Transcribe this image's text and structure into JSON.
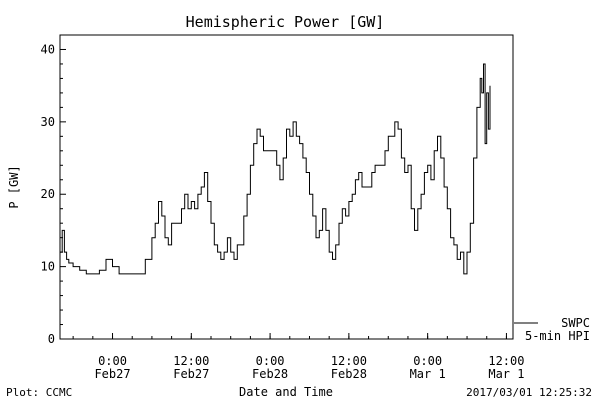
{
  "chart_data": {
    "type": "line",
    "title": "Hemispheric Power [GW]",
    "ylabel": "P [GW]",
    "xlabel": "Date and Time",
    "ylim": [
      0,
      42
    ],
    "xlim": [
      "2017-02-26T16:00",
      "2017-03-01T13:00"
    ],
    "y_ticks": [
      0,
      10,
      20,
      30,
      40
    ],
    "x_ticks": [
      {
        "t": "2017-02-27T00:00",
        "time": "0:00",
        "date": "Feb27"
      },
      {
        "t": "2017-02-27T12:00",
        "time": "12:00",
        "date": "Feb27"
      },
      {
        "t": "2017-02-28T00:00",
        "time": "0:00",
        "date": "Feb28"
      },
      {
        "t": "2017-02-28T12:00",
        "time": "12:00",
        "date": "Feb28"
      },
      {
        "t": "2017-03-01T00:00",
        "time": "0:00",
        "date": "Mar 1"
      },
      {
        "t": "2017-03-01T12:00",
        "time": "12:00",
        "date": "Mar 1"
      }
    ],
    "legend": {
      "lines": [
        "SWPC",
        "5-min HPI"
      ],
      "placement": "bottom-right outside"
    },
    "grid": false,
    "series": [
      {
        "name": "SWPC 5-min HPI",
        "points": [
          [
            "2017-02-26T16:00",
            12
          ],
          [
            "2017-02-26T16:20",
            15
          ],
          [
            "2017-02-26T16:40",
            12
          ],
          [
            "2017-02-26T17:00",
            11
          ],
          [
            "2017-02-26T17:20",
            10.5
          ],
          [
            "2017-02-26T18:00",
            10
          ],
          [
            "2017-02-26T19:00",
            9.5
          ],
          [
            "2017-02-26T20:00",
            9
          ],
          [
            "2017-02-26T22:00",
            9.5
          ],
          [
            "2017-02-26T23:00",
            11
          ],
          [
            "2017-02-27T00:00",
            10
          ],
          [
            "2017-02-27T01:00",
            9
          ],
          [
            "2017-02-27T04:00",
            9
          ],
          [
            "2017-02-27T05:00",
            11
          ],
          [
            "2017-02-27T06:00",
            14
          ],
          [
            "2017-02-27T06:30",
            16
          ],
          [
            "2017-02-27T07:00",
            19
          ],
          [
            "2017-02-27T07:30",
            17
          ],
          [
            "2017-02-27T08:00",
            14
          ],
          [
            "2017-02-27T08:30",
            13
          ],
          [
            "2017-02-27T09:00",
            16
          ],
          [
            "2017-02-27T10:00",
            16
          ],
          [
            "2017-02-27T10:30",
            18
          ],
          [
            "2017-02-27T11:00",
            20
          ],
          [
            "2017-02-27T11:30",
            18
          ],
          [
            "2017-02-27T12:00",
            19
          ],
          [
            "2017-02-27T12:30",
            18
          ],
          [
            "2017-02-27T13:00",
            20
          ],
          [
            "2017-02-27T13:30",
            21
          ],
          [
            "2017-02-27T14:00",
            23
          ],
          [
            "2017-02-27T14:30",
            19
          ],
          [
            "2017-02-27T15:00",
            16
          ],
          [
            "2017-02-27T15:30",
            13
          ],
          [
            "2017-02-27T16:00",
            12
          ],
          [
            "2017-02-27T16:30",
            11
          ],
          [
            "2017-02-27T17:00",
            12
          ],
          [
            "2017-02-27T17:30",
            14
          ],
          [
            "2017-02-27T18:00",
            12
          ],
          [
            "2017-02-27T18:30",
            11
          ],
          [
            "2017-02-27T19:00",
            13
          ],
          [
            "2017-02-27T20:00",
            17
          ],
          [
            "2017-02-27T20:30",
            20
          ],
          [
            "2017-02-27T21:00",
            24
          ],
          [
            "2017-02-27T21:30",
            27
          ],
          [
            "2017-02-27T22:00",
            29
          ],
          [
            "2017-02-27T22:30",
            28
          ],
          [
            "2017-02-27T23:00",
            26
          ],
          [
            "2017-02-28T00:30",
            26
          ],
          [
            "2017-02-28T01:00",
            24
          ],
          [
            "2017-02-28T01:30",
            22
          ],
          [
            "2017-02-28T02:00",
            25
          ],
          [
            "2017-02-28T02:30",
            29
          ],
          [
            "2017-02-28T03:00",
            28
          ],
          [
            "2017-02-28T03:30",
            30
          ],
          [
            "2017-02-28T04:00",
            28
          ],
          [
            "2017-02-28T04:30",
            27
          ],
          [
            "2017-02-28T05:00",
            25
          ],
          [
            "2017-02-28T05:30",
            23
          ],
          [
            "2017-02-28T06:00",
            20
          ],
          [
            "2017-02-28T06:30",
            17
          ],
          [
            "2017-02-28T07:00",
            14
          ],
          [
            "2017-02-28T07:30",
            15
          ],
          [
            "2017-02-28T08:00",
            18
          ],
          [
            "2017-02-28T08:30",
            15
          ],
          [
            "2017-02-28T09:00",
            12
          ],
          [
            "2017-02-28T09:30",
            11
          ],
          [
            "2017-02-28T10:00",
            13
          ],
          [
            "2017-02-28T10:30",
            16
          ],
          [
            "2017-02-28T11:00",
            18
          ],
          [
            "2017-02-28T11:30",
            17
          ],
          [
            "2017-02-28T12:00",
            19
          ],
          [
            "2017-02-28T12:30",
            20
          ],
          [
            "2017-02-28T13:00",
            22
          ],
          [
            "2017-02-28T13:30",
            23
          ],
          [
            "2017-02-28T14:00",
            21
          ],
          [
            "2017-02-28T15:00",
            21
          ],
          [
            "2017-02-28T15:30",
            23
          ],
          [
            "2017-02-28T16:00",
            24
          ],
          [
            "2017-02-28T17:00",
            24
          ],
          [
            "2017-02-28T17:30",
            26
          ],
          [
            "2017-02-28T18:00",
            28
          ],
          [
            "2017-02-28T18:30",
            28
          ],
          [
            "2017-02-28T19:00",
            30
          ],
          [
            "2017-02-28T19:30",
            29
          ],
          [
            "2017-02-28T20:00",
            25
          ],
          [
            "2017-02-28T20:30",
            23
          ],
          [
            "2017-02-28T21:00",
            24
          ],
          [
            "2017-02-28T21:30",
            18
          ],
          [
            "2017-02-28T22:00",
            15
          ],
          [
            "2017-02-28T22:30",
            18
          ],
          [
            "2017-02-28T23:00",
            20
          ],
          [
            "2017-02-28T23:30",
            23
          ],
          [
            "2017-03-01T00:00",
            24
          ],
          [
            "2017-03-01T00:30",
            22
          ],
          [
            "2017-03-01T01:00",
            26
          ],
          [
            "2017-03-01T01:30",
            28
          ],
          [
            "2017-03-01T02:00",
            25
          ],
          [
            "2017-03-01T02:30",
            21
          ],
          [
            "2017-03-01T03:00",
            18
          ],
          [
            "2017-03-01T03:30",
            14
          ],
          [
            "2017-03-01T04:00",
            13
          ],
          [
            "2017-03-01T04:30",
            11
          ],
          [
            "2017-03-01T05:00",
            12
          ],
          [
            "2017-03-01T05:30",
            9
          ],
          [
            "2017-03-01T06:00",
            12
          ],
          [
            "2017-03-01T06:30",
            16
          ],
          [
            "2017-03-01T07:00",
            25
          ],
          [
            "2017-03-01T07:30",
            32
          ],
          [
            "2017-03-01T08:00",
            36
          ],
          [
            "2017-03-01T08:15",
            34
          ],
          [
            "2017-03-01T08:30",
            38
          ],
          [
            "2017-03-01T08:45",
            27
          ],
          [
            "2017-03-01T09:00",
            34
          ],
          [
            "2017-03-01T09:15",
            29
          ],
          [
            "2017-03-01T09:30",
            35
          ]
        ]
      }
    ]
  },
  "footer": {
    "left": "Plot: CCMC",
    "right": "2017/03/01 12:25:32"
  }
}
